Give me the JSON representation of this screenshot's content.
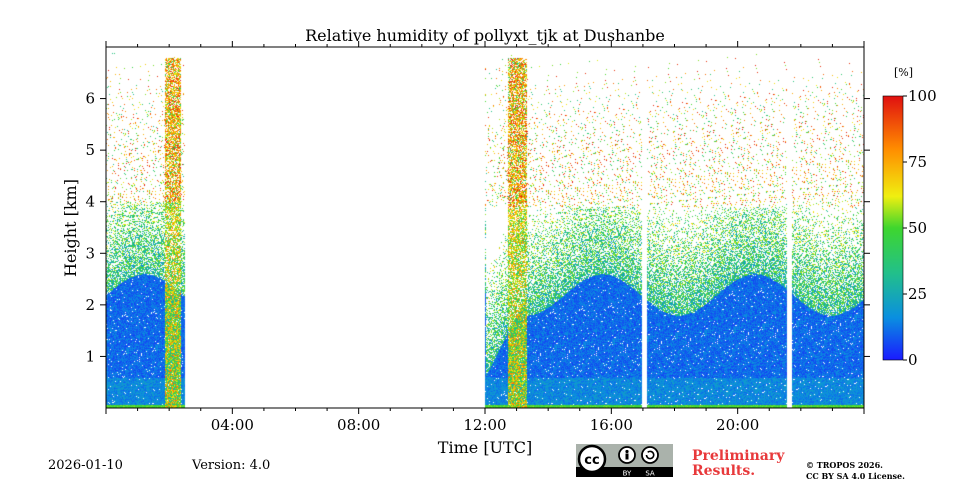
{
  "chart_data": {
    "type": "heatmap",
    "title": "Relative humidity of pollyxt_tjk at Dushanbe",
    "xlabel": "Time [UTC]",
    "ylabel": "Height [km]",
    "xlim_hours": [
      0,
      24
    ],
    "ylim_km": [
      0,
      7
    ],
    "x_ticks": [
      {
        "hour": 4,
        "label": "04:00"
      },
      {
        "hour": 8,
        "label": "08:00"
      },
      {
        "hour": 12,
        "label": "12:00"
      },
      {
        "hour": 16,
        "label": "16:00"
      },
      {
        "hour": 20,
        "label": "20:00"
      }
    ],
    "y_ticks": [
      {
        "km": 1,
        "label": "1"
      },
      {
        "km": 2,
        "label": "2"
      },
      {
        "km": 3,
        "label": "3"
      },
      {
        "km": 4,
        "label": "4"
      },
      {
        "km": 5,
        "label": "5"
      },
      {
        "km": 6,
        "label": "6"
      }
    ],
    "colorbar": {
      "unit": "[%]",
      "range": [
        0,
        100
      ],
      "ticks": [
        {
          "value": 0,
          "label": "0"
        },
        {
          "value": 25,
          "label": "25"
        },
        {
          "value": 50,
          "label": "50"
        },
        {
          "value": 75,
          "label": "75"
        },
        {
          "value": 100,
          "label": "100"
        }
      ],
      "colors": [
        "#1a1aff",
        "#0a8fe0",
        "#22c08a",
        "#3ed62e",
        "#f0ef10",
        "#ff8c00",
        "#e01010"
      ]
    },
    "data_segments_hours": [
      [
        0,
        2.5
      ],
      [
        12,
        16.95
      ],
      [
        17.1,
        21.55
      ],
      [
        21.7,
        24
      ]
    ],
    "gaps_hours": [
      [
        2.5,
        12
      ],
      [
        16.95,
        17.1
      ],
      [
        21.55,
        21.7
      ]
    ]
  },
  "footer": {
    "date": "2026-01-10",
    "version": "Version: 4.0",
    "preliminary_line1": "Preliminary",
    "preliminary_line2": "Results.",
    "copyright_line1": "© TROPOS 2026.",
    "copyright_line2": "CC BY SA 4.0 License.",
    "license_badge": {
      "cc": "cc",
      "by": "BY",
      "sa": "SA"
    }
  }
}
